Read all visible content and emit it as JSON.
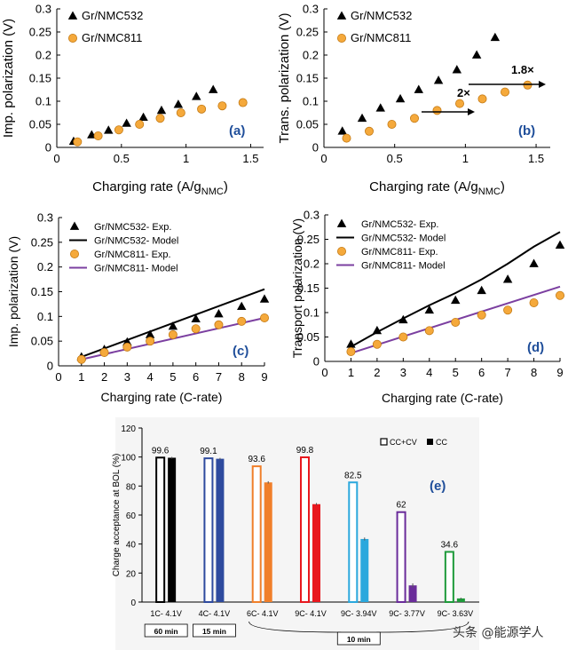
{
  "colors": {
    "nmc532": "#000000",
    "nmc811": "#f5a93b",
    "nmc811_edge": "#c47a14",
    "model811": "#7b3fa0",
    "panel_label": "#1f4e9a"
  },
  "chart_data": [
    {
      "id": "a",
      "type": "scatter",
      "panel_label": "(a)",
      "xlabel": "Charging rate (A/g",
      "xlabel_sub": "NMC",
      "xlabel_end": ")",
      "ylabel": "Imp. polarization (V)",
      "xlim": [
        0,
        1.6
      ],
      "ylim": [
        0,
        0.3
      ],
      "xticks": [
        "0",
        "0.5",
        "1",
        "1.5"
      ],
      "yticks": [
        "0",
        "0.05",
        "0.1",
        "0.15",
        "0.2",
        "0.25",
        "0.3"
      ],
      "legend": [
        "Gr/NMC532",
        "Gr/NMC811"
      ],
      "series": [
        {
          "name": "Gr/NMC532",
          "marker": "triangle",
          "x": [
            0.13,
            0.27,
            0.4,
            0.54,
            0.67,
            0.81,
            0.94,
            1.08,
            1.21
          ],
          "y": [
            0.013,
            0.027,
            0.037,
            0.052,
            0.065,
            0.08,
            0.093,
            0.11,
            0.125
          ]
        },
        {
          "name": "Gr/NMC811",
          "marker": "circle",
          "x": [
            0.16,
            0.32,
            0.48,
            0.64,
            0.8,
            0.96,
            1.12,
            1.28,
            1.44
          ],
          "y": [
            0.012,
            0.025,
            0.038,
            0.05,
            0.063,
            0.075,
            0.083,
            0.09,
            0.097
          ]
        }
      ]
    },
    {
      "id": "b",
      "type": "scatter",
      "panel_label": "(b)",
      "xlabel": "Charging rate (A/g",
      "xlabel_sub": "NMC",
      "xlabel_end": ")",
      "ylabel": "Trans. polarization (V)",
      "xlim": [
        0,
        1.6
      ],
      "ylim": [
        0,
        0.3
      ],
      "xticks": [
        "0",
        "0.5",
        "1",
        "1.5"
      ],
      "yticks": [
        "0",
        "0.05",
        "0.1",
        "0.15",
        "0.2",
        "0.25",
        "0.3"
      ],
      "legend": [
        "Gr/NMC532",
        "Gr/NMC811"
      ],
      "annotations": [
        "2×",
        "1.8×"
      ],
      "series": [
        {
          "name": "Gr/NMC532",
          "marker": "triangle",
          "x": [
            0.13,
            0.27,
            0.4,
            0.54,
            0.67,
            0.81,
            0.94,
            1.08,
            1.21
          ],
          "y": [
            0.035,
            0.063,
            0.085,
            0.105,
            0.125,
            0.145,
            0.168,
            0.2,
            0.238
          ]
        },
        {
          "name": "Gr/NMC811",
          "marker": "circle",
          "x": [
            0.16,
            0.32,
            0.48,
            0.64,
            0.8,
            0.96,
            1.12,
            1.28,
            1.44
          ],
          "y": [
            0.02,
            0.035,
            0.05,
            0.063,
            0.08,
            0.095,
            0.105,
            0.12,
            0.135
          ]
        }
      ]
    },
    {
      "id": "c",
      "type": "scatter",
      "panel_label": "(c)",
      "xlabel": "Charging rate (C-rate)",
      "ylabel": "Imp. polarization (V)",
      "xlim": [
        0,
        9
      ],
      "ylim": [
        0,
        0.3
      ],
      "xticks": [
        "0",
        "1",
        "2",
        "3",
        "4",
        "5",
        "6",
        "7",
        "8",
        "9"
      ],
      "yticks": [
        "0",
        "0.05",
        "0.1",
        "0.15",
        "0.2",
        "0.25",
        "0.3"
      ],
      "legend": [
        "Gr/NMC532- Exp.",
        "Gr/NMC532- Model",
        "Gr/NMC811- Exp.",
        "Gr/NMC811- Model"
      ],
      "series": [
        {
          "name": "Gr/NMC532- Exp.",
          "marker": "triangle",
          "x": [
            1,
            2,
            3,
            4,
            5,
            6,
            7,
            8,
            9
          ],
          "y": [
            0.018,
            0.033,
            0.048,
            0.063,
            0.08,
            0.095,
            0.105,
            0.12,
            0.135
          ]
        },
        {
          "name": "Gr/NMC532- Model",
          "marker": "line",
          "x": [
            1,
            9
          ],
          "y": [
            0.018,
            0.155
          ]
        },
        {
          "name": "Gr/NMC811- Exp.",
          "marker": "circle",
          "x": [
            1,
            2,
            3,
            4,
            5,
            6,
            7,
            8,
            9
          ],
          "y": [
            0.013,
            0.027,
            0.038,
            0.05,
            0.063,
            0.075,
            0.083,
            0.09,
            0.097
          ]
        },
        {
          "name": "Gr/NMC811- Model",
          "marker": "line",
          "x": [
            1,
            9
          ],
          "y": [
            0.013,
            0.097
          ]
        }
      ]
    },
    {
      "id": "d",
      "type": "scatter",
      "panel_label": "(d)",
      "xlabel": "Charging rate (C-rate)",
      "ylabel": "Transport polarization (V)",
      "xlim": [
        0,
        9
      ],
      "ylim": [
        0,
        0.3
      ],
      "xticks": [
        "0",
        "1",
        "2",
        "3",
        "4",
        "5",
        "6",
        "7",
        "8",
        "9"
      ],
      "yticks": [
        "0",
        "0.05",
        "0.1",
        "0.15",
        "0.2",
        "0.25",
        "0.3"
      ],
      "legend": [
        "Gr/NMC532- Exp.",
        "Gr/NMC532- Model",
        "Gr/NMC811- Exp.",
        "Gr/NMC811- Model"
      ],
      "series": [
        {
          "name": "Gr/NMC532- Exp.",
          "marker": "triangle",
          "x": [
            1,
            2,
            3,
            4,
            5,
            6,
            7,
            8,
            9
          ],
          "y": [
            0.035,
            0.063,
            0.085,
            0.105,
            0.125,
            0.145,
            0.168,
            0.2,
            0.238
          ]
        },
        {
          "name": "Gr/NMC532- Model",
          "marker": "line",
          "x": [
            1,
            2,
            3,
            4,
            5,
            6,
            7,
            8,
            9
          ],
          "y": [
            0.03,
            0.06,
            0.088,
            0.115,
            0.14,
            0.168,
            0.2,
            0.235,
            0.265
          ]
        },
        {
          "name": "Gr/NMC811- Exp.",
          "marker": "circle",
          "x": [
            1,
            2,
            3,
            4,
            5,
            6,
            7,
            8,
            9
          ],
          "y": [
            0.02,
            0.035,
            0.05,
            0.063,
            0.08,
            0.095,
            0.105,
            0.12,
            0.135
          ]
        },
        {
          "name": "Gr/NMC811- Model",
          "marker": "line",
          "x": [
            1,
            9
          ],
          "y": [
            0.017,
            0.153
          ]
        }
      ]
    },
    {
      "id": "e",
      "type": "bar",
      "panel_label": "(e)",
      "ylabel": "Charge acceptance at BOL (%)",
      "ylim": [
        0,
        120
      ],
      "yticks": [
        "0",
        "20",
        "40",
        "60",
        "80",
        "100",
        "120"
      ],
      "categories": [
        "1C- 4.1V",
        "4C- 4.1V",
        "6C- 4.1V",
        "9C- 4.1V",
        "9C- 3.94V",
        "9C- 3.77V",
        "9C- 3.63V"
      ],
      "groups": [
        {
          "label": "60 min",
          "from": 0,
          "to": 0
        },
        {
          "label": "15 min",
          "from": 1,
          "to": 1
        },
        {
          "label": "10 min",
          "from": 2,
          "to": 6
        }
      ],
      "legend": [
        "CC+CV",
        "CC"
      ],
      "bar_colors": [
        "#000000",
        "#2e4a9e",
        "#f07f2a",
        "#e8181e",
        "#2aa8dd",
        "#6a2c9a",
        "#1e9a3a"
      ],
      "series": [
        {
          "name": "CC+CV",
          "style": "hollow",
          "values": [
            99.6,
            99.1,
            93.6,
            99.8,
            82.5,
            62,
            34.6
          ],
          "labels": [
            "99.6",
            "99.1",
            "93.6",
            "99.8",
            "82.5",
            "62",
            "34.6"
          ]
        },
        {
          "name": "CC",
          "style": "filled",
          "values": [
            99.5,
            98.8,
            82.5,
            67.5,
            43.5,
            11.5,
            2.5
          ],
          "errors": [
            0.6,
            0.6,
            0.8,
            0.8,
            1.0,
            1.4,
            0.5
          ]
        }
      ]
    }
  ],
  "watermark": "头条 @能源学人"
}
